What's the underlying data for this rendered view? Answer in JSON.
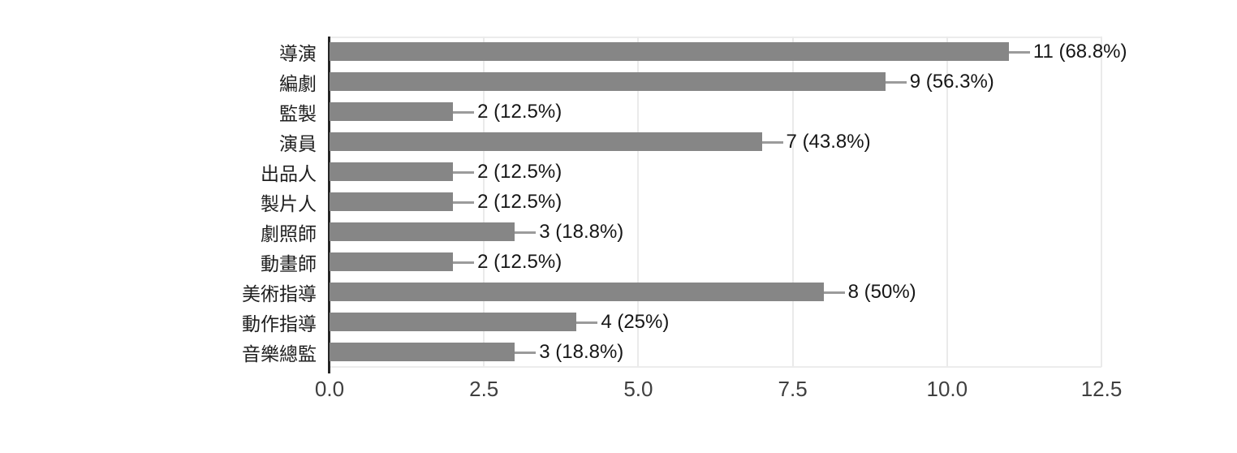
{
  "chart_data": {
    "type": "bar",
    "orientation": "horizontal",
    "title": "",
    "xlabel": "",
    "ylabel": "",
    "categories": [
      "導演",
      "編劇",
      "監製",
      "演員",
      "出品人",
      "製片人",
      "劇照師",
      "動畫師",
      "美術指導",
      "動作指導",
      "音樂總監"
    ],
    "values": [
      11,
      9,
      2,
      7,
      2,
      2,
      3,
      2,
      8,
      4,
      3
    ],
    "value_labels": [
      "11 (68.8%)",
      "9 (56.3%)",
      "2 (12.5%)",
      "7 (43.8%)",
      "2 (12.5%)",
      "2 (12.5%)",
      "3 (18.8%)",
      "2 (12.5%)",
      "8 (50%)",
      "4 (25%)",
      "3 (18.8%)"
    ],
    "xlim": [
      0,
      12.5
    ],
    "xticks": {
      "values": [
        0,
        2.5,
        5,
        7.5,
        10,
        12.5
      ],
      "labels": [
        "0.0",
        "2.5",
        "5.0",
        "7.5",
        "10.0",
        "12.5"
      ]
    },
    "grid": "vertical-light",
    "legend": "none",
    "colors": {
      "bar": "#868686",
      "grid": "#eaeaea",
      "plot_border": "#ececec",
      "axis": "#262626",
      "leader_line": "#9b9b9b",
      "value_text": "#161616",
      "category_text": "#1f1f1f",
      "tick_text": "#3f3f3f",
      "background": "#ffffff"
    }
  }
}
